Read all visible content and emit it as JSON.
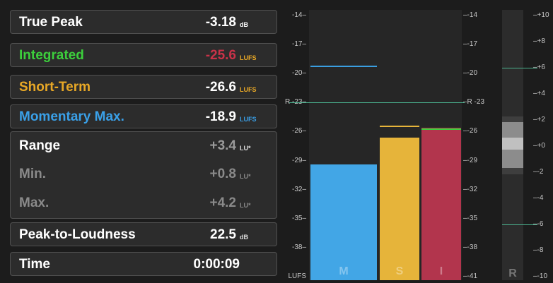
{
  "stats": {
    "true_peak": {
      "label": "True Peak",
      "value": "-3.18",
      "unit": "dB"
    },
    "integrated": {
      "label": "Integrated",
      "value": "-25.6",
      "unit": "LUFS"
    },
    "short_term": {
      "label": "Short-Term",
      "value": "-26.6",
      "unit": "LUFS"
    },
    "momentary_max": {
      "label": "Momentary Max.",
      "value": "-18.9",
      "unit": "LUFS"
    },
    "range": {
      "label": "Range",
      "value": "+3.4",
      "unit": "LU*"
    },
    "min": {
      "label": "Min.",
      "value": "+0.8",
      "unit": "LU*"
    },
    "max": {
      "label": "Max.",
      "value": "+4.2",
      "unit": "LU*"
    },
    "peak_to_loudness": {
      "label": "Peak-to-Loudness",
      "value": "22.5",
      "unit": "dB"
    },
    "time": {
      "label": "Time",
      "value": "0:00:09"
    }
  },
  "meter": {
    "left_scale": [
      "-14",
      "-17",
      "-20",
      "R -23",
      "-26",
      "-29",
      "-32",
      "-35",
      "-38",
      "LUFS"
    ],
    "right_scale": [
      "-14",
      "-17",
      "-20",
      "R -23",
      "-26",
      "-29",
      "-32",
      "-35",
      "-38",
      "-41"
    ],
    "range_scale": [
      "+10",
      "+8",
      "+6",
      "+4",
      "+2",
      "+0",
      "-2",
      "-4",
      "-6",
      "-8",
      "-10"
    ],
    "reference_lufs": -23,
    "bars": {
      "momentary": {
        "label": "M",
        "level_lufs": -29.4,
        "peak_lufs": -19.2
      },
      "short_term": {
        "label": "S",
        "level_lufs": -26.6,
        "peak_lufs": -25.4
      },
      "integrated": {
        "label": "I",
        "level_lufs": -25.6,
        "peak_lufs": -25.7
      }
    },
    "range_label": "R",
    "range_markers": [
      6,
      -6
    ]
  },
  "colors": {
    "integrated": "#3ccf3c",
    "integrated_value": "#c83248",
    "short_term": "#e8a826",
    "momentary": "#3aa0e8",
    "momentary_bar": "#42a6e6",
    "short_term_bar": "#e6b43a",
    "integrated_bar": "#b2354d",
    "reference_line": "#4bb38f"
  }
}
